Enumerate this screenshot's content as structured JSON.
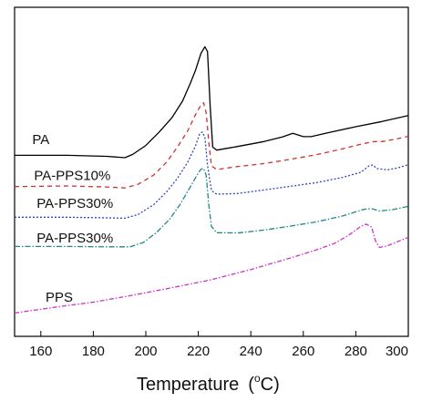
{
  "chart_data": {
    "type": "line",
    "title": "",
    "xlabel": "Temperature",
    "xlabel_unit_prefix": "(",
    "xlabel_unit_sup": "o",
    "xlabel_unit_suffix": "C)",
    "ylabel": "",
    "xlim": [
      150,
      300
    ],
    "ylim": [
      0,
      100
    ],
    "xticks": [
      160,
      180,
      200,
      220,
      240,
      260,
      280,
      300
    ],
    "grid": false,
    "legend": "none",
    "series": [
      {
        "name": "PA",
        "color": "#000000",
        "dash": "solid",
        "label_at": [
          160,
          58.5
        ],
        "points": [
          [
            150,
            55
          ],
          [
            170,
            55
          ],
          [
            185,
            54.7
          ],
          [
            192,
            54.3
          ],
          [
            195,
            55.3
          ],
          [
            200,
            58
          ],
          [
            205,
            62
          ],
          [
            210,
            66.5
          ],
          [
            214,
            71.5
          ],
          [
            217,
            77
          ],
          [
            219,
            81
          ],
          [
            221,
            86
          ],
          [
            222.5,
            88
          ],
          [
            223.5,
            86.5
          ],
          [
            224.5,
            70
          ],
          [
            225.5,
            57.5
          ],
          [
            227,
            56.6
          ],
          [
            235,
            57.7
          ],
          [
            245,
            59.2
          ],
          [
            252,
            60.6
          ],
          [
            256,
            61.7
          ],
          [
            260,
            60.7
          ],
          [
            263,
            60.7
          ],
          [
            270,
            62
          ],
          [
            280,
            63.7
          ],
          [
            290,
            65.3
          ],
          [
            300,
            67.1
          ]
        ]
      },
      {
        "name": "PA-PPS10%",
        "color": "#cc3333",
        "dash": "5,4",
        "label_at": [
          172,
          47.5
        ],
        "points": [
          [
            150,
            45.5
          ],
          [
            170,
            45.7
          ],
          [
            185,
            45.4
          ],
          [
            192,
            45.1
          ],
          [
            197,
            46.2
          ],
          [
            203,
            49
          ],
          [
            208,
            53
          ],
          [
            212,
            57.5
          ],
          [
            216,
            62.5
          ],
          [
            219,
            67.5
          ],
          [
            221,
            70.3
          ],
          [
            222,
            71
          ],
          [
            223,
            68
          ],
          [
            224,
            59
          ],
          [
            225,
            51.8
          ],
          [
            227,
            50.7
          ],
          [
            235,
            51.6
          ],
          [
            245,
            52.5
          ],
          [
            255,
            53.8
          ],
          [
            265,
            55.2
          ],
          [
            275,
            57
          ],
          [
            283,
            58.6
          ],
          [
            287,
            59.2
          ],
          [
            290,
            59.2
          ],
          [
            295,
            59.9
          ],
          [
            300,
            60.8
          ]
        ]
      },
      {
        "name": "PA-PPS30%",
        "color": "#3344bb",
        "dash": "2,2",
        "label_at": [
          173,
          39
        ],
        "points": [
          [
            150,
            36.2
          ],
          [
            170,
            36.2
          ],
          [
            185,
            36
          ],
          [
            192,
            35.9
          ],
          [
            197,
            37
          ],
          [
            203,
            40
          ],
          [
            208,
            44
          ],
          [
            212,
            48
          ],
          [
            216,
            53
          ],
          [
            219,
            58
          ],
          [
            220.5,
            61.5
          ],
          [
            221.5,
            62.1
          ],
          [
            222.5,
            60.5
          ],
          [
            223.5,
            52
          ],
          [
            225,
            44.3
          ],
          [
            227,
            43.2
          ],
          [
            235,
            43.4
          ],
          [
            245,
            44.5
          ],
          [
            255,
            45.6
          ],
          [
            265,
            46.7
          ],
          [
            275,
            48.3
          ],
          [
            282,
            49.9
          ],
          [
            285,
            51.8
          ],
          [
            286.5,
            52.1
          ],
          [
            288,
            51
          ],
          [
            292,
            50.6
          ],
          [
            296,
            51.2
          ],
          [
            300,
            52.2
          ]
        ]
      },
      {
        "name": "PA-PPS30%",
        "color": "#228888",
        "dash": "6,2,1.5,2",
        "label_at": [
          173,
          28.5
        ],
        "points": [
          [
            150,
            27.3
          ],
          [
            170,
            27.3
          ],
          [
            185,
            27.2
          ],
          [
            194,
            27.2
          ],
          [
            199,
            28.5
          ],
          [
            204,
            31.5
          ],
          [
            209,
            35.5
          ],
          [
            213,
            40
          ],
          [
            217,
            45.5
          ],
          [
            219.5,
            49
          ],
          [
            221,
            50.8
          ],
          [
            222,
            51
          ],
          [
            223,
            49
          ],
          [
            224,
            40
          ],
          [
            225,
            33.4
          ],
          [
            227,
            31.5
          ],
          [
            235,
            31.4
          ],
          [
            245,
            32.3
          ],
          [
            255,
            33.5
          ],
          [
            265,
            34.8
          ],
          [
            275,
            36.6
          ],
          [
            283,
            38.6
          ],
          [
            286,
            38.8
          ],
          [
            289,
            38.1
          ],
          [
            294,
            38.5
          ],
          [
            300,
            39.5
          ]
        ]
      },
      {
        "name": "PPS",
        "color": "#cc33cc",
        "dash": "5,2,1.5,2",
        "label_at": [
          167,
          10.5
        ],
        "points": [
          [
            150,
            7.1
          ],
          [
            165,
            8.8
          ],
          [
            180,
            10.4
          ],
          [
            195,
            12.5
          ],
          [
            210,
            14.8
          ],
          [
            225,
            17.2
          ],
          [
            240,
            20.3
          ],
          [
            255,
            23.8
          ],
          [
            265,
            26.3
          ],
          [
            272,
            28.3
          ],
          [
            277,
            30.6
          ],
          [
            280,
            32.3
          ],
          [
            282,
            33.5
          ],
          [
            284,
            34.1
          ],
          [
            286,
            33.2
          ],
          [
            287.5,
            29
          ],
          [
            289,
            27
          ],
          [
            292,
            27.5
          ],
          [
            296,
            28.8
          ],
          [
            300,
            30.1
          ]
        ]
      }
    ]
  }
}
